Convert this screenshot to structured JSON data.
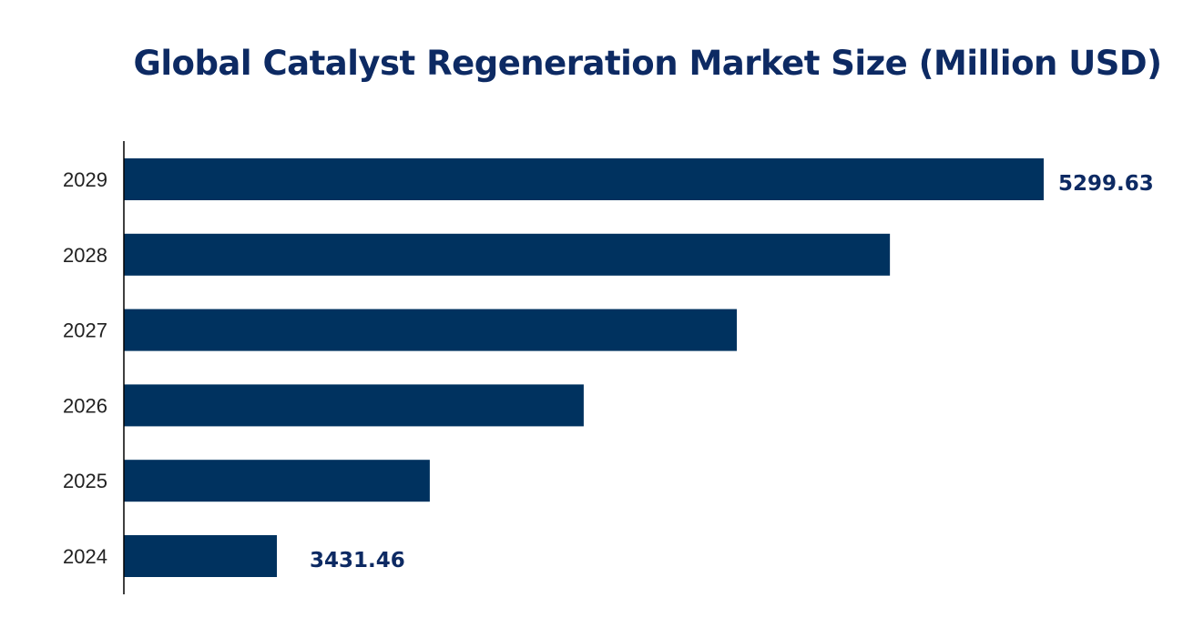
{
  "chart_data": {
    "type": "bar",
    "orientation": "horizontal",
    "title": "Global Catalyst Regeneration Market Size (Million USD)",
    "xlabel": "",
    "ylabel": "",
    "categories": [
      "2024",
      "2025",
      "2026",
      "2027",
      "2028",
      "2029"
    ],
    "values": [
      3431.46,
      3804,
      4179,
      4552,
      4925,
      5299.63
    ],
    "data_labels": {
      "2024": "3431.46",
      "2029": "5299.63"
    },
    "grid": false,
    "legend": "none",
    "bar_color": "#00325f",
    "label_color": "#0d2a63"
  }
}
